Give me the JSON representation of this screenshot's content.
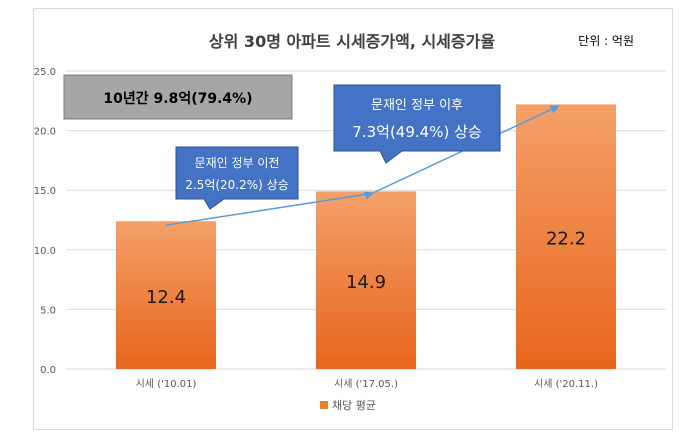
{
  "chart_data": {
    "type": "bar",
    "title": "상위 30명 아파트 시세증가액, 시세증가율",
    "unit_label": "단위 : 억원",
    "categories": [
      "시세 ('10.01)",
      "시세 ('17.05.)",
      "시세 ('20.11.)"
    ],
    "series": [
      {
        "name": "채당 평균",
        "values": [
          12.4,
          14.9,
          22.2
        ],
        "color": "#ed7d31"
      }
    ],
    "data_labels": [
      "12.4",
      "14.9",
      "22.2"
    ],
    "yticks": [
      "0.0",
      "5.0",
      "10.0",
      "15.0",
      "20.0",
      "25.0"
    ],
    "ylim": [
      0,
      25
    ],
    "grid": true,
    "legend": "bottom",
    "annotations": {
      "total_box": "10년간 9.8억(79.4%)",
      "before_box": {
        "line1": "문재인 정부 이전",
        "line2": "2.5억(20.2%) 상승"
      },
      "after_box": {
        "line1": "문재인 정부 이후",
        "line2": "7.3억(49.4%) 상승"
      }
    }
  }
}
